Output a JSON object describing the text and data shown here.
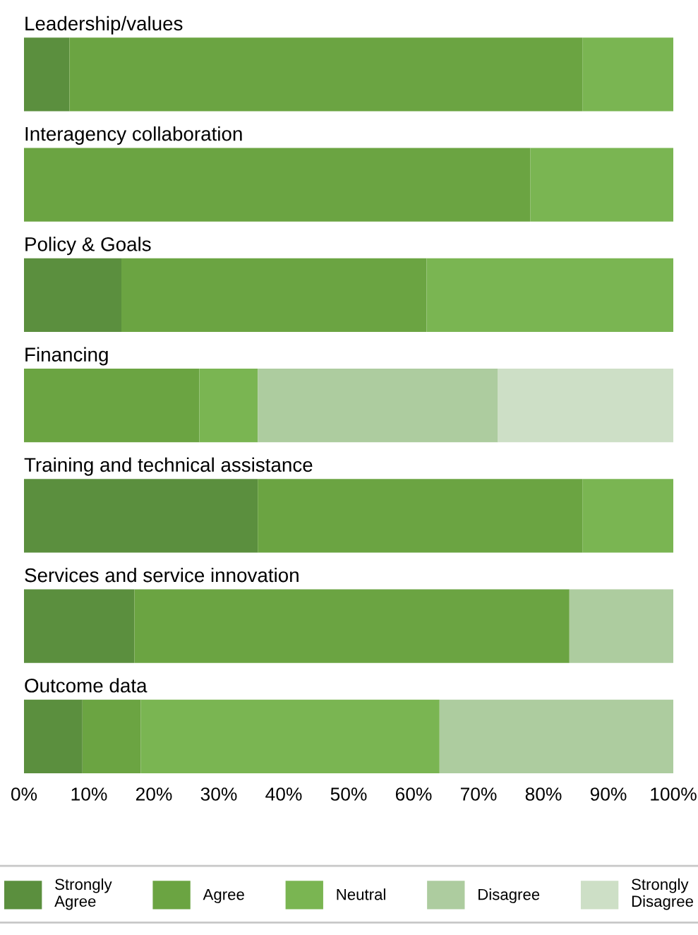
{
  "chart_data": {
    "type": "bar",
    "orientation": "horizontal",
    "stacked": true,
    "categories": [
      "Leadership/values",
      "Interagency collaboration",
      "Policy & Goals",
      "Financing",
      "Training and technical assistance",
      "Services and service innovation",
      "Outcome data"
    ],
    "series": [
      {
        "name": "Strongly Agree",
        "color": "#5b8f3e",
        "values": [
          7,
          0,
          15,
          0,
          36,
          17,
          9
        ]
      },
      {
        "name": "Agree",
        "color": "#6ba442",
        "values": [
          79,
          78,
          47,
          27,
          50,
          67,
          9
        ]
      },
      {
        "name": "Neutral",
        "color": "#7ab552",
        "values": [
          14,
          22,
          38,
          9,
          14,
          0,
          46
        ]
      },
      {
        "name": "Disagree",
        "color": "#adcc9f",
        "values": [
          0,
          0,
          0,
          37,
          0,
          16,
          36
        ]
      },
      {
        "name": "Strongly Disagree",
        "color": "#cddfc6",
        "values": [
          0,
          0,
          0,
          27,
          0,
          0,
          0
        ]
      }
    ],
    "xlim": [
      0,
      100
    ],
    "xticks": [
      {
        "value": 0,
        "label": "0%"
      },
      {
        "value": 10,
        "label": "10%"
      },
      {
        "value": 20,
        "label": "20%"
      },
      {
        "value": 30,
        "label": "30%"
      },
      {
        "value": 40,
        "label": "40%"
      },
      {
        "value": 50,
        "label": "50%"
      },
      {
        "value": 60,
        "label": "60%"
      },
      {
        "value": 70,
        "label": "70%"
      },
      {
        "value": 80,
        "label": "80%"
      },
      {
        "value": 90,
        "label": "90%"
      },
      {
        "value": 100,
        "label": "100%"
      }
    ],
    "tick_labels": "x",
    "grid": false,
    "legend": "bottom"
  }
}
